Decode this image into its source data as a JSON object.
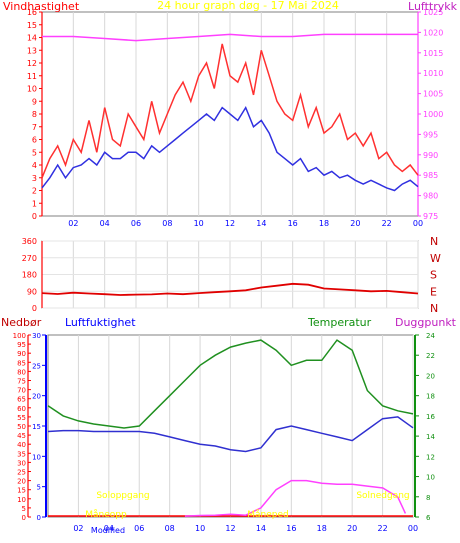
{
  "header": {
    "title": "24 hour graph døg - 17 Mai 2024",
    "left_label": "Vindhastighet",
    "right_label": "Lufttrykk"
  },
  "panel2": {
    "compass_labels": [
      "N",
      "W",
      "S",
      "E",
      "N"
    ]
  },
  "panel3": {
    "labels": {
      "nedbor": "Nedbør",
      "fukt": "Luftfuktighet",
      "temp": "Temperatur",
      "dugg": "Duggpunkt"
    },
    "annotations": {
      "soloppgang": "Soloppgang",
      "solnedgang": "Solnedgang",
      "maaneopp": "Måneopp",
      "maanened": "Måneped",
      "modified": "Modified"
    }
  },
  "colors": {
    "wind_gust": "#ff3030",
    "wind_avg": "#3030e0",
    "pressure": "#ff40ff",
    "direction": "#e00000",
    "temperature": "#209020",
    "humidity": "#3030d0",
    "dewpoint": "#ff40ff",
    "rain": "#ff0000",
    "axis_left": "#ff0000",
    "axis_right": "#ff40ff",
    "axis_blue": "#0000ff",
    "axis_green": "#109010",
    "annotation": "#ffff00"
  },
  "chart_data": [
    {
      "type": "line",
      "title": "24 hour graph døg - 17 Mai 2024",
      "x_ticks": [
        "02",
        "04",
        "06",
        "08",
        "10",
        "12",
        "14",
        "16",
        "18",
        "20",
        "22",
        "00"
      ],
      "y_left": {
        "label": "Vindhastighet",
        "range": [
          0,
          16
        ],
        "ticks": [
          "0",
          "1",
          "2",
          "3",
          "4",
          "5",
          "6",
          "7",
          "8",
          "9",
          "10",
          "11",
          "12",
          "13",
          "14",
          "15",
          "16"
        ]
      },
      "y_right": {
        "label": "Lufttrykk",
        "range": [
          975,
          1025
        ],
        "ticks": [
          "975",
          "980",
          "985",
          "990",
          "995",
          "1000",
          "1005",
          "1010",
          "1015",
          "1020",
          "1025"
        ]
      },
      "series": [
        {
          "name": "Vindkast",
          "axis": "left",
          "x": [
            0,
            0.5,
            1,
            1.5,
            2,
            2.5,
            3,
            3.5,
            4,
            4.5,
            5,
            5.5,
            6,
            6.5,
            7,
            7.5,
            8,
            8.5,
            9,
            9.5,
            10,
            10.5,
            11,
            11.5,
            12,
            12.5,
            13,
            13.5,
            14,
            14.5,
            15,
            15.5,
            16,
            16.5,
            17,
            17.5,
            18,
            18.5,
            19,
            19.5,
            20,
            20.5,
            21,
            21.5,
            22,
            22.5,
            23,
            23.5,
            24
          ],
          "values": [
            3.0,
            4.5,
            5.5,
            4.0,
            6.0,
            5.0,
            7.5,
            5.0,
            8.5,
            6.0,
            5.5,
            8.0,
            7.0,
            6.0,
            9.0,
            6.5,
            8.0,
            9.5,
            10.5,
            9.0,
            11.0,
            12.0,
            10.0,
            13.5,
            11.0,
            10.5,
            12.0,
            9.5,
            13.0,
            11.0,
            9.0,
            8.0,
            7.5,
            9.5,
            7.0,
            8.5,
            6.5,
            7.0,
            8.0,
            6.0,
            6.5,
            5.5,
            6.5,
            4.5,
            5.0,
            4.0,
            3.5,
            4.0,
            3.2
          ]
        },
        {
          "name": "Middelvind",
          "axis": "left",
          "x": [
            0,
            0.5,
            1,
            1.5,
            2,
            2.5,
            3,
            3.5,
            4,
            4.5,
            5,
            5.5,
            6,
            6.5,
            7,
            7.5,
            8,
            8.5,
            9,
            9.5,
            10,
            10.5,
            11,
            11.5,
            12,
            12.5,
            13,
            13.5,
            14,
            14.5,
            15,
            15.5,
            16,
            16.5,
            17,
            17.5,
            18,
            18.5,
            19,
            19.5,
            20,
            20.5,
            21,
            21.5,
            22,
            22.5,
            23,
            23.5,
            24
          ],
          "values": [
            2.2,
            3.0,
            4.0,
            3.0,
            3.8,
            4.0,
            4.5,
            4.0,
            5.0,
            4.5,
            4.5,
            5.0,
            5.0,
            4.5,
            5.5,
            5.0,
            5.5,
            6.0,
            6.5,
            7.0,
            7.5,
            8.0,
            7.5,
            8.5,
            8.0,
            7.5,
            8.5,
            7.0,
            7.5,
            6.5,
            5.0,
            4.5,
            4.0,
            4.5,
            3.5,
            3.8,
            3.2,
            3.5,
            3.0,
            3.2,
            2.8,
            2.5,
            2.8,
            2.5,
            2.2,
            2.0,
            2.5,
            2.8,
            2.3
          ]
        },
        {
          "name": "Lufttrykk",
          "axis": "right",
          "x": [
            0,
            2,
            4,
            6,
            8,
            10,
            12,
            14,
            16,
            18,
            20,
            22,
            24
          ],
          "values": [
            1019.0,
            1019.0,
            1018.5,
            1018.0,
            1018.5,
            1019.0,
            1019.5,
            1019.0,
            1019.0,
            1019.5,
            1019.5,
            1019.5,
            1019.5
          ]
        }
      ]
    },
    {
      "type": "scatter",
      "title": "",
      "x_ticks": [
        "02",
        "04",
        "06",
        "08",
        "10",
        "12",
        "14",
        "16",
        "18",
        "20",
        "22",
        "00"
      ],
      "y_left": {
        "label": "",
        "range": [
          0,
          360
        ],
        "ticks": [
          "0",
          "90",
          "180",
          "270",
          "360"
        ]
      },
      "y_right_labels": [
        "N",
        "W",
        "S",
        "E",
        "N"
      ],
      "series": [
        {
          "name": "Vindretning",
          "x": [
            0,
            1,
            2,
            3,
            4,
            5,
            6,
            7,
            8,
            9,
            10,
            11,
            12,
            13,
            14,
            15,
            16,
            17,
            18,
            19,
            20,
            21,
            22,
            23,
            24
          ],
          "values": [
            80,
            75,
            82,
            78,
            74,
            70,
            72,
            73,
            78,
            74,
            80,
            85,
            90,
            95,
            110,
            120,
            130,
            125,
            105,
            100,
            95,
            90,
            92,
            85,
            78
          ]
        }
      ]
    },
    {
      "type": "line",
      "title": "",
      "x_ticks": [
        "02",
        "04",
        "06",
        "08",
        "10",
        "12",
        "14",
        "16",
        "18",
        "20",
        "22",
        "00"
      ],
      "y_nedbor": {
        "label": "Nedbør",
        "range": [
          0,
          100
        ],
        "ticks": [
          "0",
          "5",
          "10",
          "15",
          "20",
          "25",
          "30",
          "35",
          "40",
          "45",
          "50",
          "55",
          "60",
          "65",
          "70",
          "75",
          "80",
          "85",
          "90",
          "95",
          "100"
        ]
      },
      "y_fukt": {
        "label": "Luftfuktighet",
        "range": [
          0,
          30
        ],
        "ticks": [
          "0",
          "5",
          "10",
          "15",
          "20",
          "25",
          "30"
        ]
      },
      "y_temp": {
        "label": "Temperatur",
        "range": [
          6,
          24
        ],
        "ticks": [
          "6",
          "8",
          "10",
          "12",
          "14",
          "16",
          "18",
          "20",
          "22",
          "24"
        ]
      },
      "series": [
        {
          "name": "Temperatur",
          "axis": "temp",
          "x": [
            0,
            1,
            2,
            3,
            4,
            5,
            6,
            7,
            8,
            9,
            10,
            11,
            12,
            13,
            14,
            15,
            16,
            17,
            18,
            19,
            20,
            21,
            22,
            23,
            24
          ],
          "values": [
            17.0,
            16.0,
            15.5,
            15.2,
            15.0,
            14.8,
            15.0,
            16.5,
            18.0,
            19.5,
            21.0,
            22.0,
            22.8,
            23.2,
            23.5,
            22.5,
            21.0,
            21.5,
            21.5,
            23.5,
            22.5,
            18.5,
            17.0,
            16.5,
            16.2
          ]
        },
        {
          "name": "Luftfuktighet",
          "axis": "nedbor",
          "x": [
            0,
            1,
            2,
            3,
            4,
            5,
            6,
            7,
            8,
            9,
            10,
            11,
            12,
            13,
            14,
            15,
            16,
            17,
            18,
            19,
            20,
            21,
            22,
            23,
            24
          ],
          "values": [
            47.0,
            47.5,
            47.5,
            47.0,
            47.0,
            47.0,
            47.0,
            46.0,
            44.0,
            42.0,
            40.0,
            39.0,
            37.0,
            36.0,
            38.0,
            48.0,
            50.0,
            48.0,
            46.0,
            44.0,
            42.0,
            48.0,
            54.0,
            55.0,
            49.0
          ]
        },
        {
          "name": "Duggpunkt",
          "axis": "nedbor",
          "x": [
            9,
            10,
            11,
            12,
            13,
            14,
            15,
            16,
            17,
            18,
            19,
            20,
            21,
            22,
            23,
            23.5
          ],
          "values": [
            0.5,
            0.8,
            1.0,
            1.5,
            1.0,
            5.0,
            15.0,
            20.0,
            20.0,
            18.5,
            18.0,
            18.0,
            17.0,
            16.0,
            11.0,
            2.0
          ]
        }
      ]
    }
  ]
}
